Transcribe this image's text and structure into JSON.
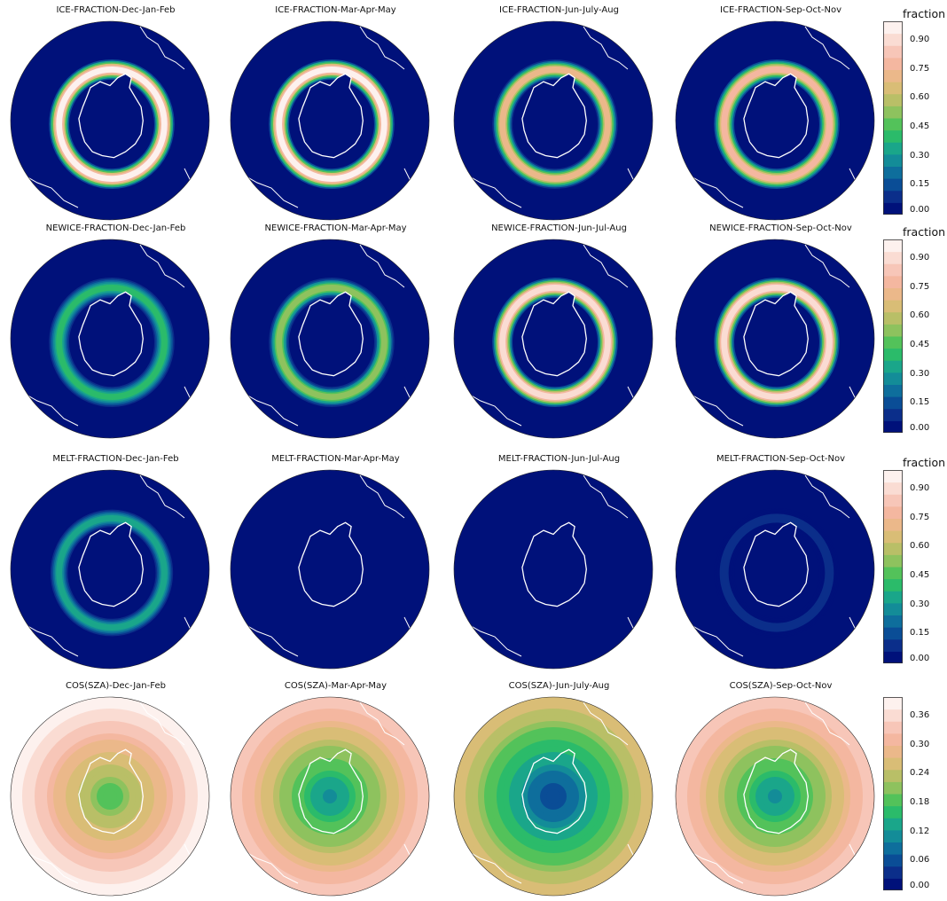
{
  "chart_data": {
    "type": "heatmap",
    "description_type": "polar-stereographic sea-ice maps (Southern Hemisphere), 4 variables x 4 seasons",
    "palette": [
      "#00117a",
      "#0b2e8a",
      "#0a4d96",
      "#0e6e9c",
      "#138c98",
      "#1aa68a",
      "#2bbb6a",
      "#53c25a",
      "#8ec25e",
      "#b9bf67",
      "#d9bd76",
      "#ebb88a",
      "#f4b7a0",
      "#f7c6b8",
      "#fadcd3",
      "#fdf1ee"
    ],
    "land_outline_color": "#ffffff",
    "rows": [
      {
        "variable": "ICE-FRACTION",
        "colorbar": {
          "label": "fraction",
          "ticks": [
            "0.90",
            "0.75",
            "0.60",
            "0.45",
            "0.30",
            "0.15",
            "0.00"
          ],
          "range": [
            0.0,
            1.0
          ]
        },
        "panels": [
          {
            "title": "ICE-FRACTION-Dec-Jan-Feb",
            "ring_peak": 0.95
          },
          {
            "title": "ICE-FRACTION-Mar-Apr-May",
            "ring_peak": 0.95
          },
          {
            "title": "ICE-FRACTION-Jun-July-Aug",
            "ring_peak": 0.7
          },
          {
            "title": "ICE-FRACTION-Sep-Oct-Nov",
            "ring_peak": 0.8
          }
        ]
      },
      {
        "variable": "NEWICE-FRACTION",
        "colorbar": {
          "label": "fraction",
          "ticks": [
            "0.90",
            "0.75",
            "0.60",
            "0.45",
            "0.30",
            "0.15",
            "0.00"
          ],
          "range": [
            0.0,
            1.0
          ]
        },
        "panels": [
          {
            "title": "NEWICE-FRACTION-Dec-Jan-Feb",
            "ring_peak": 0.4
          },
          {
            "title": "NEWICE-FRACTION-Mar-Apr-May",
            "ring_peak": 0.55
          },
          {
            "title": "NEWICE-FRACTION-Jun-Jul-Aug",
            "ring_peak": 0.9
          },
          {
            "title": "NEWICE-FRACTION-Sep-Oct-Nov",
            "ring_peak": 0.9
          }
        ]
      },
      {
        "variable": "MELT-FRACTION",
        "colorbar": {
          "label": "fraction",
          "ticks": [
            "0.90",
            "0.75",
            "0.60",
            "0.45",
            "0.30",
            "0.15",
            "0.00"
          ],
          "range": [
            0.0,
            1.0
          ]
        },
        "panels": [
          {
            "title": "MELT-FRACTION-Dec-Jan-Feb",
            "ring_peak": 0.35
          },
          {
            "title": "MELT-FRACTION-Mar-Apr-May",
            "ring_peak": 0.0
          },
          {
            "title": "MELT-FRACTION-Jun-Jul-Aug",
            "ring_peak": 0.0
          },
          {
            "title": "MELT-FRACTION-Sep-Oct-Nov",
            "ring_peak": 0.08
          }
        ]
      },
      {
        "variable": "COS(SZA)",
        "colorbar": {
          "label": "",
          "ticks": [
            "0.36",
            "0.30",
            "0.24",
            "0.18",
            "0.12",
            "0.06",
            "0.00"
          ],
          "range": [
            0.0,
            0.4
          ]
        },
        "panels": [
          {
            "title": "COS(SZA)-Dec-Jan-Feb",
            "center_value": 0.17,
            "edge_value": 0.4
          },
          {
            "title": "COS(SZA)-Mar-Apr-May",
            "center_value": 0.1,
            "edge_value": 0.35
          },
          {
            "title": "COS(SZA)-Jun-July-Aug",
            "center_value": 0.04,
            "edge_value": 0.27
          },
          {
            "title": "COS(SZA)-Sep-Oct-Nov",
            "center_value": 0.1,
            "edge_value": 0.35
          }
        ]
      }
    ]
  }
}
